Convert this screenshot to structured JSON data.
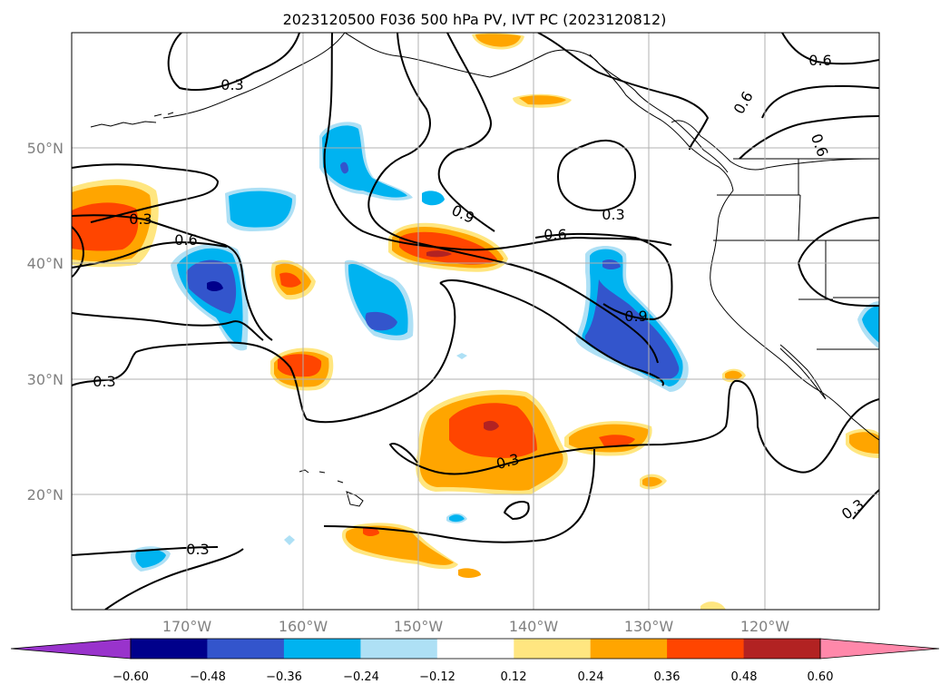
{
  "title": "2023120500 F036 500 hPa PV, IVT PC (2023120812)",
  "map": {
    "lon_ticks": [
      "170°W",
      "160°W",
      "150°W",
      "140°W",
      "130°W",
      "120°W"
    ],
    "lat_ticks": [
      "50°N",
      "40°N",
      "30°N",
      "20°N"
    ],
    "contour_labels": [
      "0.3",
      "0.3",
      "0.3",
      "0.3",
      "0.3",
      "0.3",
      "0.6",
      "0.6",
      "0.6",
      "0.6",
      "0.6",
      "0.9",
      "0.9",
      "0.3"
    ]
  },
  "colorbar": {
    "ticks": [
      "−0.60",
      "−0.48",
      "−0.36",
      "−0.24",
      "−0.12",
      "0.12",
      "0.24",
      "0.36",
      "0.48",
      "0.60"
    ],
    "colors": [
      "#9933cc",
      "#00008b",
      "#3355cc",
      "#00b3f0",
      "#aee0f5",
      "#ffffff",
      "#ffe680",
      "#ffa500",
      "#ff4500",
      "#b22222",
      "#ff88aa"
    ]
  },
  "colors": {
    "blue_light": "#aee0f5",
    "blue": "#00b3f0",
    "blue_mid": "#3355cc",
    "navy": "#00008b",
    "yellow": "#ffe680",
    "orange": "#ffa500",
    "red_orange": "#ff4500",
    "dark_red": "#b22222"
  }
}
